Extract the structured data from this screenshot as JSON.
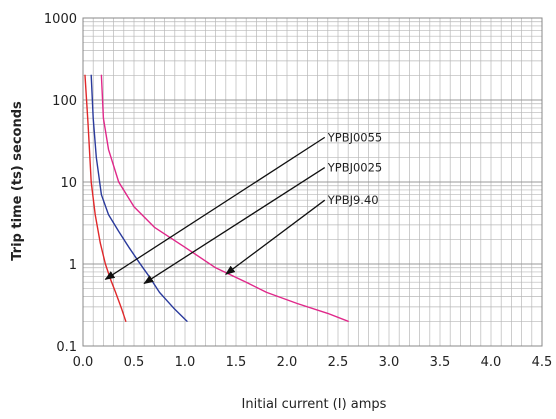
{
  "chart_data": {
    "type": "line",
    "title": "",
    "xlabel": "Initial current (I) amps",
    "ylabel": "Trip time (ts) seconds",
    "xlim": [
      0,
      4.5
    ],
    "ylim": [
      0.1,
      1000
    ],
    "yscale": "log",
    "grid": true,
    "x_ticks": [
      0.0,
      0.5,
      1.0,
      1.5,
      2.0,
      2.5,
      3.0,
      3.5,
      4.0,
      4.5
    ],
    "x_tick_labels": [
      "0.0",
      "0.5",
      "1.0",
      "1.5",
      "2.0",
      "2.5",
      "3.0",
      "3.5",
      "4.0",
      "4.5"
    ],
    "y_ticks": [
      0.1,
      1,
      10,
      100,
      1000
    ],
    "y_tick_labels": [
      "0.1",
      "1",
      "10",
      "100",
      "1000"
    ],
    "series": [
      {
        "name": "YPBJ0055",
        "color": "#e0282a",
        "x": [
          0.02,
          0.05,
          0.08,
          0.12,
          0.17,
          0.22,
          0.27,
          0.32,
          0.38,
          0.42
        ],
        "y": [
          200,
          50,
          10,
          4,
          1.8,
          1.0,
          0.65,
          0.45,
          0.28,
          0.2
        ]
      },
      {
        "name": "YPBJ0025",
        "color": "#2a3a9c",
        "x": [
          0.08,
          0.1,
          0.13,
          0.18,
          0.25,
          0.35,
          0.45,
          0.55,
          0.65,
          0.75,
          0.9,
          1.02
        ],
        "y": [
          200,
          60,
          20,
          7,
          4,
          2.5,
          1.6,
          1.05,
          0.7,
          0.45,
          0.28,
          0.2
        ]
      },
      {
        "name": "YPBJ9.40",
        "color": "#e0288a",
        "x": [
          0.18,
          0.2,
          0.25,
          0.35,
          0.5,
          0.7,
          1.0,
          1.3,
          1.6,
          1.8,
          2.1,
          2.4,
          2.6
        ],
        "y": [
          200,
          60,
          25,
          10,
          5,
          2.8,
          1.6,
          0.9,
          0.6,
          0.45,
          0.33,
          0.25,
          0.2
        ]
      }
    ],
    "annotations": [
      {
        "text": "YPBJ0055",
        "target_x": 0.22,
        "target_y": 0.65,
        "from_x": 2.37,
        "from_y": 35
      },
      {
        "text": "YPBJ0025",
        "target_x": 0.6,
        "target_y": 0.58,
        "from_x": 2.37,
        "from_y": 15
      },
      {
        "text": "YPBJ9.40",
        "target_x": 1.4,
        "target_y": 0.75,
        "from_x": 2.37,
        "from_y": 6
      }
    ]
  }
}
